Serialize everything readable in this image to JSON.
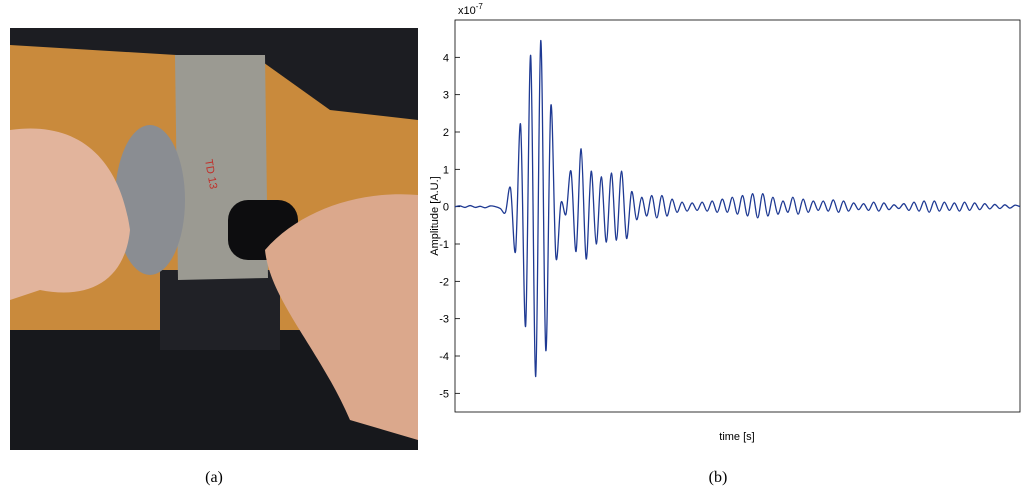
{
  "caption_a": "(a)",
  "caption_b": "(b)",
  "chart_data": {
    "type": "line",
    "xlabel": "time [s]",
    "ylabel": "Amplitude [A.U.]",
    "y_multiplier": {
      "base": "x10",
      "exponent": "-7"
    },
    "color": "#1f3a93",
    "ylim": [
      -5.5,
      5
    ],
    "yticks": [
      4,
      3,
      2,
      1,
      0,
      -1,
      -2,
      -3,
      -4,
      -5
    ],
    "values": [
      0,
      0.02,
      -0.02,
      0.03,
      -0.02,
      0.01,
      -0.03,
      0.02,
      0,
      -0.05,
      -0.15,
      0.5,
      -1.2,
      2.2,
      -3.2,
      4.05,
      -4.55,
      4.45,
      -3.85,
      2.7,
      -1.35,
      0.1,
      -0.2,
      0.95,
      -1.2,
      1.55,
      -1.4,
      0.95,
      -1.0,
      0.8,
      -0.95,
      0.9,
      -0.9,
      0.95,
      -0.85,
      0.4,
      -0.35,
      0.25,
      -0.25,
      0.3,
      -0.3,
      0.3,
      -0.25,
      0.2,
      -0.15,
      0.12,
      -0.12,
      0.1,
      -0.1,
      0.12,
      -0.12,
      0.15,
      -0.15,
      0.2,
      -0.15,
      0.25,
      -0.2,
      0.3,
      -0.25,
      0.35,
      -0.3,
      0.35,
      -0.25,
      0.25,
      -0.2,
      0.15,
      -0.15,
      0.25,
      -0.2,
      0.2,
      -0.15,
      0.15,
      -0.1,
      0.15,
      -0.12,
      0.18,
      -0.15,
      0.15,
      -0.12,
      0.1,
      -0.08,
      0.08,
      -0.1,
      0.12,
      -0.12,
      0.1,
      -0.08,
      0.05,
      -0.05,
      0.08,
      -0.1,
      0.12,
      -0.12,
      0.15,
      -0.15,
      0.15,
      -0.12,
      0.12,
      -0.1,
      0.1,
      -0.12,
      0.12,
      -0.1,
      0.1,
      -0.08,
      0.08,
      -0.06,
      0.06,
      -0.05,
      0.05,
      -0.04,
      0.04,
      0
    ]
  }
}
